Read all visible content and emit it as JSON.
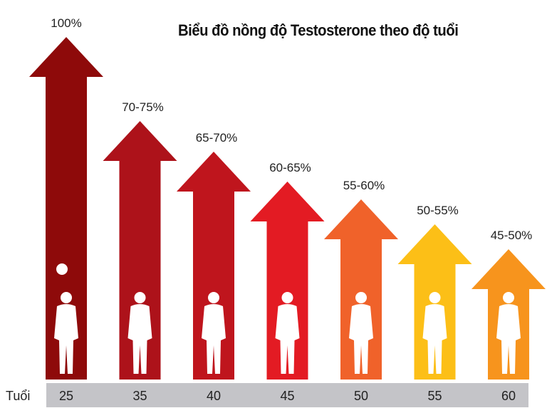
{
  "chart_data": {
    "type": "bar",
    "title": "Biểu đồ nồng độ Testosterone theo độ tuổi",
    "xlabel": "Tuổi",
    "categories": [
      "25",
      "35",
      "40",
      "45",
      "50",
      "55",
      "60"
    ],
    "labels": [
      "100%",
      "70-75%",
      "65-70%",
      "60-65%",
      "55-60%",
      "50-55%",
      "45-50%"
    ],
    "ranges": [
      [
        100,
        100
      ],
      [
        70,
        75
      ],
      [
        65,
        70
      ],
      [
        60,
        65
      ],
      [
        55,
        60
      ],
      [
        50,
        55
      ],
      [
        45,
        50
      ]
    ],
    "unit": "%",
    "colors": [
      "#8e0a0a",
      "#ad121a",
      "#bf151d",
      "#e31b23",
      "#f0622a",
      "#fcbf17",
      "#f7941d"
    ],
    "axis_band_color": "#c4c4c8",
    "icon": "person-silhouette"
  }
}
